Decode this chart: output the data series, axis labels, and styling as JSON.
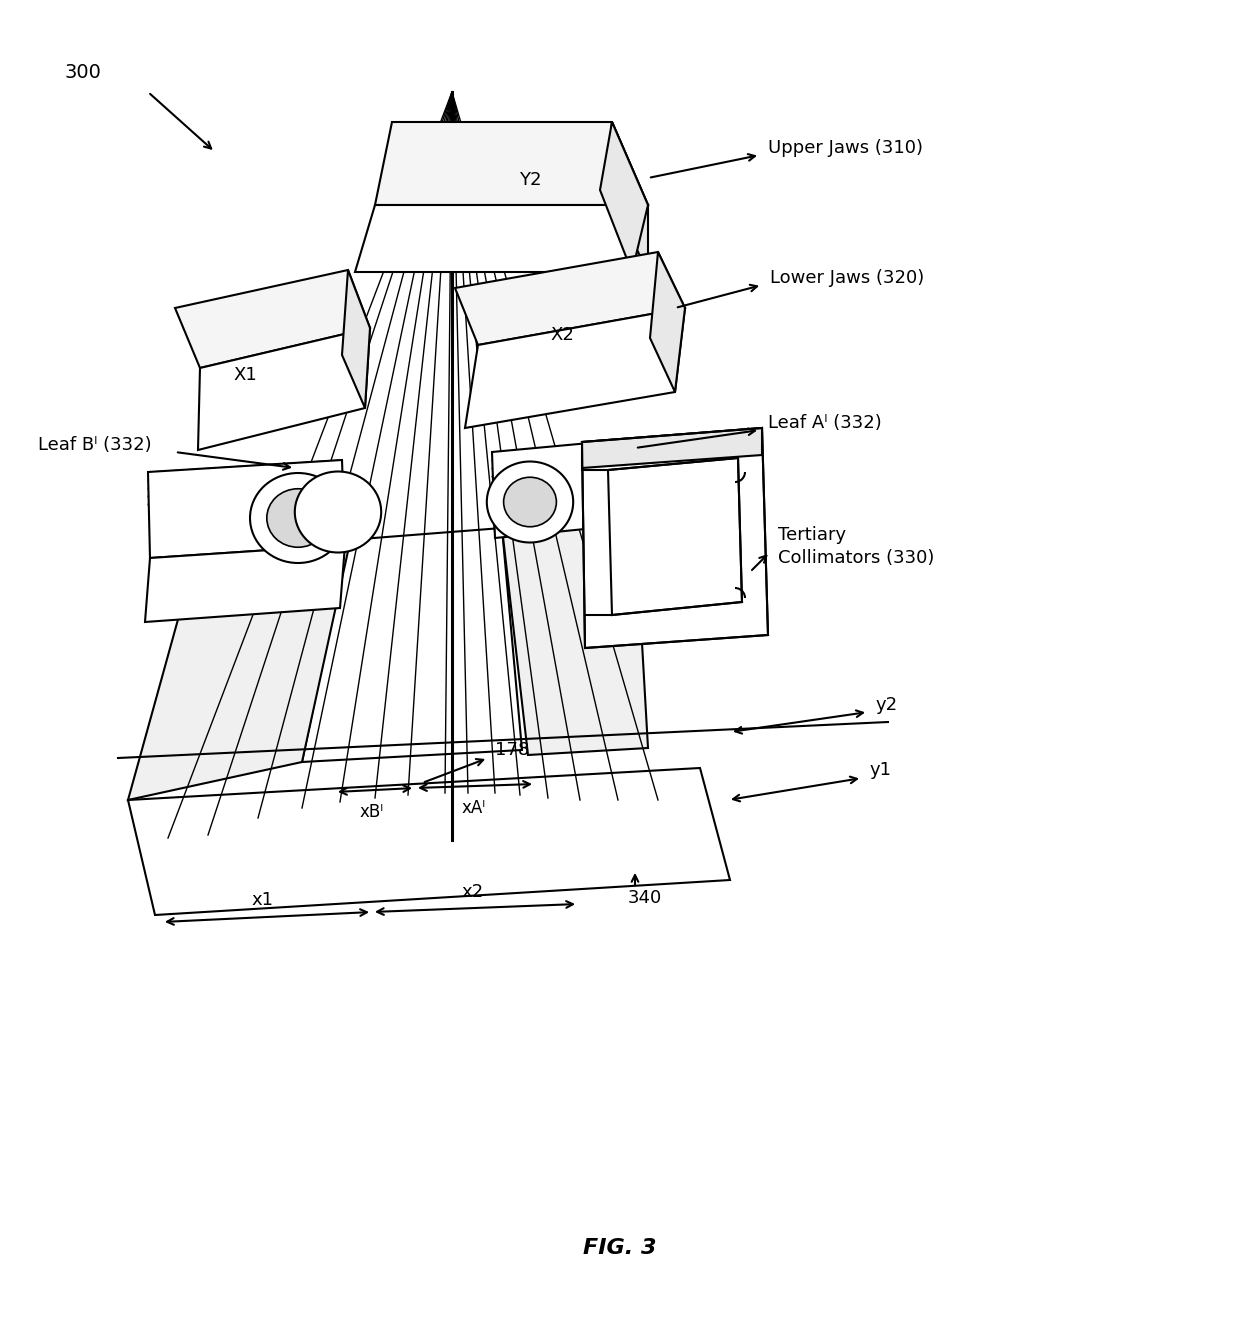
{
  "bg_color": "#ffffff",
  "line_color": "#000000",
  "fig_label": "FIG. 3",
  "label_300": "300",
  "label_upper_jaws": "Upper Jaws (310)",
  "label_lower_jaws": "Lower Jaws (320)",
  "label_leaf_B": "Leaf Bᴵ (332)",
  "label_leaf_A": "Leaf Aᴵ (332)",
  "label_tertiary_1": "Tertiary",
  "label_tertiary_2": "Collimators (330)",
  "label_Y2": "Y2",
  "label_X1": "X1",
  "label_X2": "X2",
  "label_178": "178",
  "label_xBi": "xBᴵ",
  "label_xAi": "xAᴵ",
  "label_x1": "x1",
  "label_x2": "x2",
  "label_y1": "y1",
  "label_y2": "y2",
  "label_340": "340"
}
